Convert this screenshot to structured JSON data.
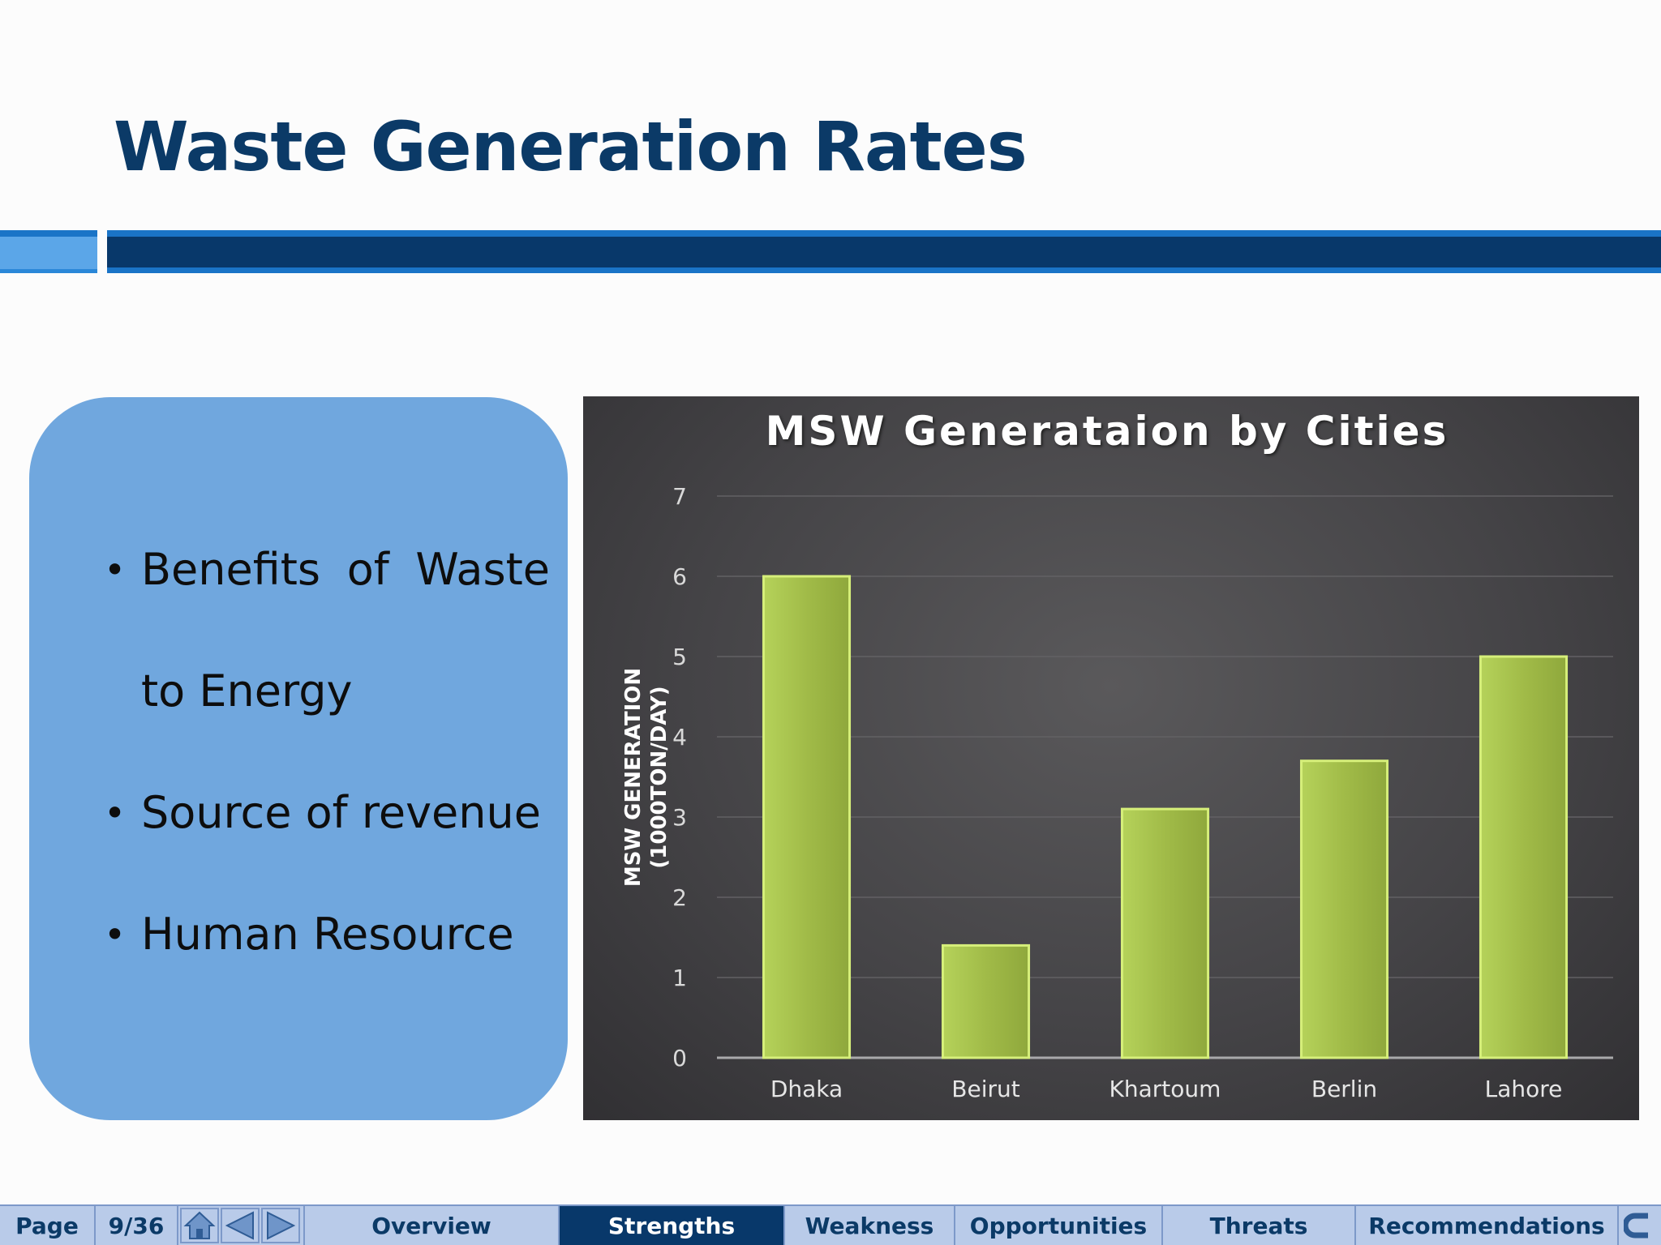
{
  "slide": {
    "title": "Waste Generation Rates"
  },
  "bullets": [
    {
      "text": "Benefits of Waste to Energy"
    },
    {
      "text": "Source of revenue"
    },
    {
      "text": "Human Resource"
    }
  ],
  "chart_data": {
    "type": "bar",
    "title": "MSW Generataion by Cities",
    "ylabel_line1": "MSW GENERATION",
    "ylabel_line2": "(1000TON/DAY)",
    "xlabel": "",
    "categories": [
      "Dhaka",
      "Beirut",
      "Khartoum",
      "Berlin",
      "Lahore"
    ],
    "values": [
      6.0,
      1.4,
      3.1,
      3.7,
      5.0
    ],
    "ylim": [
      0,
      7
    ],
    "yticks": [
      0,
      1,
      2,
      3,
      4,
      5,
      6,
      7
    ],
    "grid": true,
    "legend": "none",
    "bar_color": "#a1bb48",
    "bar_highlight": "#d6ef7a",
    "background": "#48474a"
  },
  "footer": {
    "page_label": "Page",
    "page_number": "9/36",
    "nav_icons": [
      "home-icon",
      "previous-icon",
      "next-icon"
    ],
    "tabs": [
      "Overview",
      "Strengths",
      "Weakness",
      "Opportunities",
      "Threats",
      "Recommendations"
    ],
    "active_tab": "Strengths",
    "end_icon": "return-icon"
  },
  "colors": {
    "title": "#0b3a67",
    "band_dark": "#08386a",
    "band_light": "#1a74c7",
    "box_fill": "#70a7de",
    "footer_bg": "#b9cbe9"
  }
}
